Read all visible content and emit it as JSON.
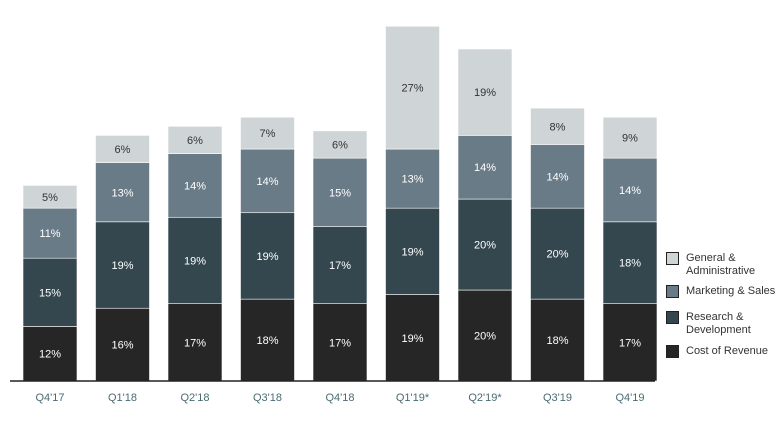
{
  "chart_data": {
    "type": "bar",
    "stacked": true,
    "categories": [
      "Q4'17",
      "Q1'18",
      "Q2'18",
      "Q3'18",
      "Q4'18",
      "Q1'19*",
      "Q2'19*",
      "Q3'19",
      "Q4'19"
    ],
    "series": [
      {
        "name": "Cost of Revenue",
        "color": "#262626",
        "label_color": "#ffffff",
        "values": [
          12,
          16,
          17,
          18,
          17,
          19,
          20,
          18,
          17
        ]
      },
      {
        "name": "Research & Development",
        "color": "#34474f",
        "label_color": "#ffffff",
        "values": [
          15,
          19,
          19,
          19,
          17,
          19,
          20,
          20,
          18
        ]
      },
      {
        "name": "Marketing & Sales",
        "color": "#6a7b88",
        "label_color": "#ffffff",
        "values": [
          11,
          13,
          14,
          14,
          15,
          13,
          14,
          14,
          14
        ]
      },
      {
        "name": "General & Administrative",
        "color": "#cfd4d6",
        "label_color": "#333333",
        "values": [
          5,
          6,
          6,
          7,
          6,
          27,
          19,
          8,
          9
        ]
      }
    ],
    "label_suffix": "%",
    "title": "",
    "xlabel": "",
    "ylabel": "",
    "ylim": [
      0,
      80
    ],
    "grid": false,
    "legend_position": "right",
    "axis_label_color": "#4a6b73"
  },
  "legend": [
    {
      "lines": [
        "General &",
        "Administrative"
      ],
      "color": "#cfd4d6"
    },
    {
      "lines": [
        "Marketing & Sales"
      ],
      "color": "#6a7b88"
    },
    {
      "lines": [
        "Research &",
        "Development"
      ],
      "color": "#34474f"
    },
    {
      "lines": [
        "Cost of Revenue"
      ],
      "color": "#262626"
    }
  ]
}
